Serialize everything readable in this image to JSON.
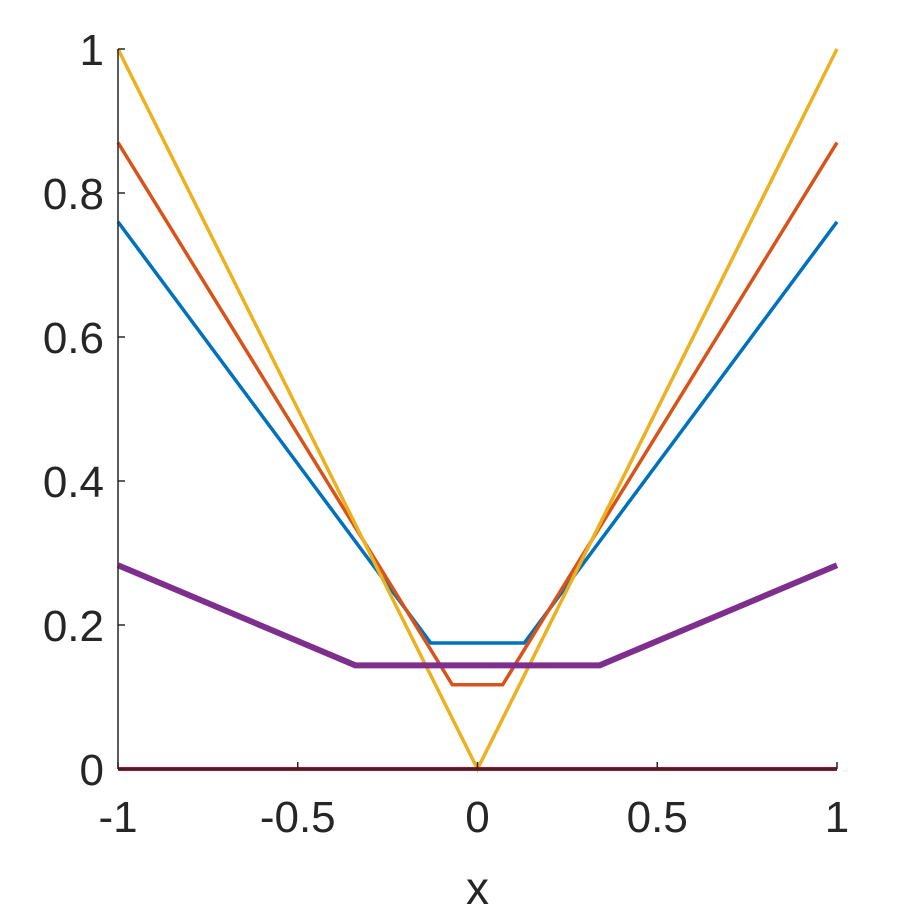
{
  "chart_data": {
    "type": "line",
    "xlabel": "x",
    "ylabel": "",
    "xlim": [
      -1,
      1
    ],
    "ylim": [
      0,
      1
    ],
    "xticks": [
      -1,
      -0.5,
      0,
      0.5,
      1
    ],
    "xtick_labels": [
      "-1",
      "-0.5",
      "0",
      "0.5",
      "1"
    ],
    "yticks": [
      0,
      0.2,
      0.4,
      0.6,
      0.8,
      1
    ],
    "ytick_labels": [
      "0",
      "0.2",
      "0.4",
      "0.6",
      "0.8",
      "1"
    ],
    "grid": false,
    "series": [
      {
        "color": "#0072BD",
        "line_width": 3.5,
        "x": [
          -1,
          -0.13,
          0.13,
          1
        ],
        "y": [
          0.76,
          0.175,
          0.175,
          0.76
        ]
      },
      {
        "color": "#D95319",
        "line_width": 3.5,
        "x": [
          -1,
          -0.07,
          0.07,
          1
        ],
        "y": [
          0.87,
          0.117,
          0.117,
          0.87
        ]
      },
      {
        "color": "#EDB120",
        "line_width": 3.5,
        "x": [
          -1,
          0,
          1
        ],
        "y": [
          1.0,
          0.0,
          1.0
        ]
      },
      {
        "color": "#7E2F8E",
        "line_width": 6,
        "x": [
          -1,
          -0.34,
          0.34,
          1
        ],
        "y": [
          0.283,
          0.144,
          0.144,
          0.283
        ]
      },
      {
        "color": "#A2142F",
        "line_width": 4,
        "x": [
          -1,
          1
        ],
        "y": [
          0,
          0
        ]
      }
    ]
  }
}
